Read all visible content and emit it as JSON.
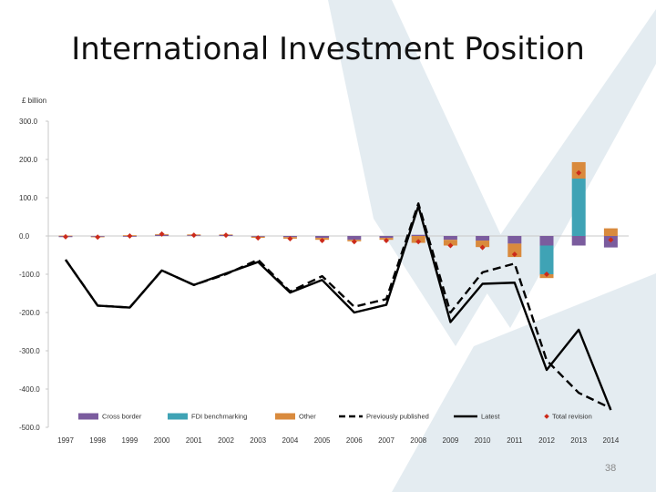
{
  "slide": {
    "title": "International Investment Position",
    "page_number": "38"
  },
  "chart_data": {
    "type": "bar",
    "ylabel": "£ billion",
    "xlabel": "",
    "ylim": [
      -500,
      300
    ],
    "yticks": [
      300,
      200,
      100,
      0,
      -100,
      -200,
      -300,
      -400,
      -500
    ],
    "ytick_labels": [
      "300.0",
      "200.0",
      "100.0",
      "0.0",
      "-100.0",
      "-200.0",
      "-300.0",
      "-400.0",
      "-500.0"
    ],
    "categories": [
      "1997",
      "1998",
      "1999",
      "2000",
      "2001",
      "2002",
      "2003",
      "2004",
      "2005",
      "2006",
      "2007",
      "2008",
      "2009",
      "2010",
      "2011",
      "2012",
      "2013",
      "2014"
    ],
    "legend_position": "bottom",
    "bar_series": [
      {
        "name": "Cross border",
        "color": "#7b5c9e",
        "values": [
          -3,
          -2,
          -2,
          3,
          2,
          3,
          -2,
          -3,
          -5,
          -10,
          -5,
          3,
          -10,
          -12,
          -20,
          -25,
          -25,
          -30
        ]
      },
      {
        "name": "FDI benchmarking",
        "color": "#3fa3b5",
        "values": [
          0,
          0,
          0,
          0,
          0,
          0,
          0,
          0,
          0,
          0,
          0,
          0,
          0,
          0,
          0,
          -75,
          150,
          0
        ]
      },
      {
        "name": "Other",
        "color": "#d98a3d",
        "values": [
          1,
          -1,
          2,
          2,
          2,
          1,
          -3,
          -4,
          -5,
          -4,
          -5,
          -18,
          -15,
          -17,
          -35,
          -10,
          43,
          20
        ]
      }
    ],
    "line_series": [
      {
        "name": "Previously published",
        "style": "dashed",
        "color": "#000000",
        "values": [
          -62,
          -182,
          -187,
          -90,
          -128,
          -100,
          -62,
          -145,
          -105,
          -185,
          -165,
          85,
          -200,
          -95,
          -72,
          -325,
          -410,
          -450
        ]
      },
      {
        "name": "Latest",
        "style": "solid",
        "color": "#000000",
        "values": [
          -62,
          -182,
          -187,
          -90,
          -128,
          -98,
          -68,
          -148,
          -115,
          -200,
          -180,
          78,
          -225,
          -125,
          -122,
          -350,
          -245,
          -455
        ]
      }
    ],
    "marker_series": {
      "name": "Total revision",
      "color": "#cc2a1a",
      "values": [
        -2,
        -3,
        0,
        5,
        2,
        2,
        -5,
        -7,
        -12,
        -15,
        -12,
        -15,
        -25,
        -30,
        -48,
        -100,
        165,
        -10
      ]
    }
  }
}
